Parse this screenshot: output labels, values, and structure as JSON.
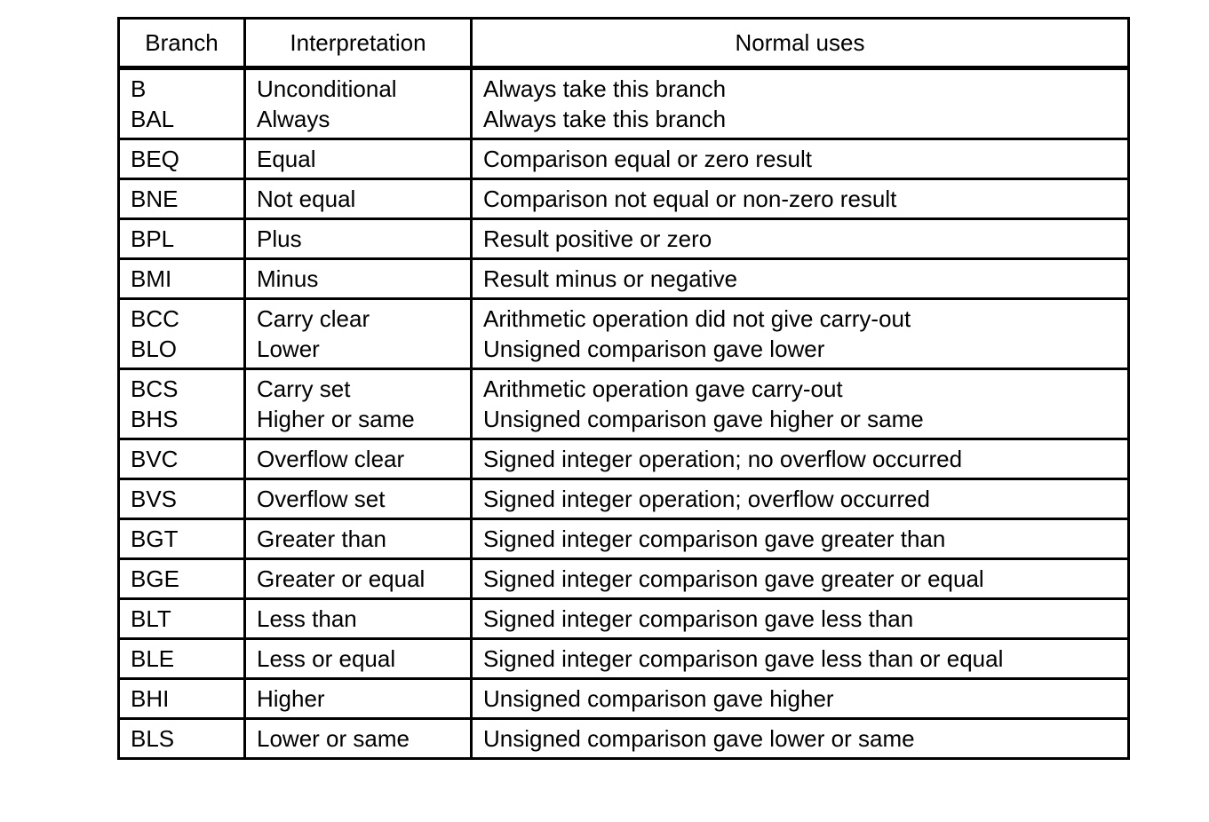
{
  "table": {
    "headers": [
      "Branch",
      "Interpretation",
      "Normal uses"
    ],
    "rows": [
      {
        "branch": [
          "B",
          "BAL"
        ],
        "interpretation": [
          "Unconditional",
          "Always"
        ],
        "uses": [
          "Always take this branch",
          "Always take this branch"
        ]
      },
      {
        "branch": [
          "BEQ"
        ],
        "interpretation": [
          "Equal"
        ],
        "uses": [
          "Comparison equal or zero result"
        ]
      },
      {
        "branch": [
          "BNE"
        ],
        "interpretation": [
          "Not equal"
        ],
        "uses": [
          "Comparison not equal or non-zero result"
        ]
      },
      {
        "branch": [
          "BPL"
        ],
        "interpretation": [
          "Plus"
        ],
        "uses": [
          "Result positive or zero"
        ]
      },
      {
        "branch": [
          "BMI"
        ],
        "interpretation": [
          "Minus"
        ],
        "uses": [
          "Result minus or negative"
        ]
      },
      {
        "branch": [
          "BCC",
          "BLO"
        ],
        "interpretation": [
          "Carry clear",
          "Lower"
        ],
        "uses": [
          "Arithmetic operation did not give carry-out",
          "Unsigned comparison gave lower"
        ]
      },
      {
        "branch": [
          "BCS",
          "BHS"
        ],
        "interpretation": [
          "Carry set",
          "Higher or same"
        ],
        "uses": [
          "Arithmetic operation gave carry-out",
          "Unsigned comparison gave higher or same"
        ]
      },
      {
        "branch": [
          "BVC"
        ],
        "interpretation": [
          "Overflow clear"
        ],
        "uses": [
          "Signed integer operation; no overflow occurred"
        ]
      },
      {
        "branch": [
          "BVS"
        ],
        "interpretation": [
          "Overflow set"
        ],
        "uses": [
          "Signed integer operation; overflow occurred"
        ]
      },
      {
        "branch": [
          "BGT"
        ],
        "interpretation": [
          "Greater than"
        ],
        "uses": [
          "Signed integer comparison gave greater than"
        ]
      },
      {
        "branch": [
          "BGE"
        ],
        "interpretation": [
          "Greater or equal"
        ],
        "uses": [
          "Signed integer comparison gave greater or equal"
        ]
      },
      {
        "branch": [
          "BLT"
        ],
        "interpretation": [
          "Less than"
        ],
        "uses": [
          "Signed integer comparison gave less than"
        ]
      },
      {
        "branch": [
          "BLE"
        ],
        "interpretation": [
          "Less or equal"
        ],
        "uses": [
          "Signed integer comparison gave less than or equal"
        ]
      },
      {
        "branch": [
          "BHI"
        ],
        "interpretation": [
          "Higher"
        ],
        "uses": [
          "Unsigned comparison gave higher"
        ]
      },
      {
        "branch": [
          "BLS"
        ],
        "interpretation": [
          "Lower or same"
        ],
        "uses": [
          "Unsigned comparison gave lower or same"
        ]
      }
    ]
  }
}
